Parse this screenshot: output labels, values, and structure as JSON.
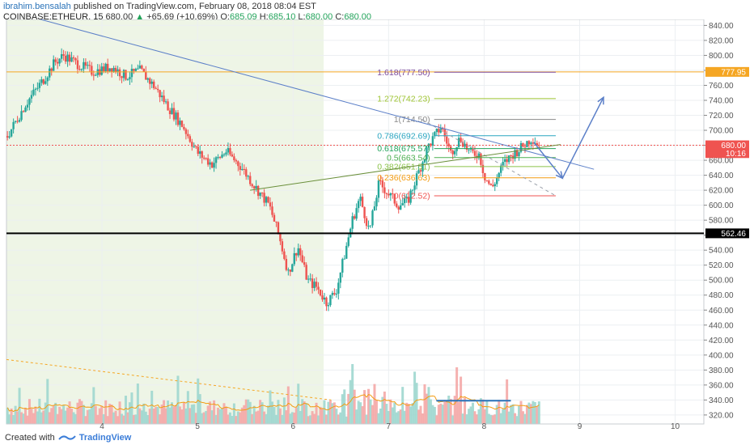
{
  "header": {
    "user": "ibrahim.bensalah",
    "published": "published on TradingView.com, February 08, 2018 08:04 EST",
    "symbol": "COINBASE:ETHEUR, 15",
    "last": "680.00",
    "change_arrow": "▲",
    "change": "+65.69 (+10.69%)",
    "o_label": "O:",
    "o": "685.09",
    "h_label": "H:",
    "h": "685.10",
    "l_label": "L:",
    "l": "680.00",
    "c_label": "C:",
    "c": "680.00"
  },
  "footer": {
    "created_with": "Created with",
    "brand": "TradingView"
  },
  "colors": {
    "up": "#26a69a",
    "down": "#ef5350",
    "session_bg": "#eef5e6",
    "trend": "#5b7fc8",
    "support": "#000000",
    "orange_line": "#f5a623",
    "volume_ma": "#f39c12"
  },
  "chart_data": {
    "type": "candlestick",
    "title": "COINBASE:ETHEUR, 15",
    "xlim": [
      3.0,
      10.3
    ],
    "ylim": [
      308,
      848
    ],
    "x_ticks": [
      "4",
      "5",
      "6",
      "7",
      "8",
      "9",
      "10"
    ],
    "y_ticks": [
      "840.00",
      "820.00",
      "800.00",
      "780.00",
      "760.00",
      "740.00",
      "720.00",
      "700.00",
      "680.00",
      "660.00",
      "640.00",
      "620.00",
      "600.00",
      "580.00",
      "560.00",
      "540.00",
      "520.00",
      "500.00",
      "480.00",
      "460.00",
      "440.00",
      "420.00",
      "400.00",
      "380.00",
      "360.00",
      "340.00",
      "320.00"
    ],
    "price_path": [
      [
        3.0,
        690
      ],
      [
        3.2,
        735
      ],
      [
        3.4,
        770
      ],
      [
        3.5,
        790
      ],
      [
        3.6,
        800
      ],
      [
        3.75,
        788
      ],
      [
        3.9,
        778
      ],
      [
        4.1,
        785
      ],
      [
        4.25,
        772
      ],
      [
        4.4,
        780
      ],
      [
        4.55,
        758
      ],
      [
        4.7,
        730
      ],
      [
        4.85,
        705
      ],
      [
        5.0,
        670
      ],
      [
        5.15,
        655
      ],
      [
        5.3,
        672
      ],
      [
        5.45,
        652
      ],
      [
        5.6,
        625
      ],
      [
        5.75,
        600
      ],
      [
        5.85,
        560
      ],
      [
        5.95,
        510
      ],
      [
        6.05,
        545
      ],
      [
        6.15,
        500
      ],
      [
        6.25,
        490
      ],
      [
        6.35,
        470
      ],
      [
        6.45,
        485
      ],
      [
        6.55,
        540
      ],
      [
        6.62,
        580
      ],
      [
        6.7,
        610
      ],
      [
        6.8,
        565
      ],
      [
        6.9,
        630
      ],
      [
        7.0,
        615
      ],
      [
        7.1,
        600
      ],
      [
        7.2,
        605
      ],
      [
        7.3,
        640
      ],
      [
        7.42,
        680
      ],
      [
        7.55,
        705
      ],
      [
        7.65,
        670
      ],
      [
        7.75,
        690
      ],
      [
        7.85,
        670
      ],
      [
        7.95,
        668
      ],
      [
        8.0,
        640
      ],
      [
        8.08,
        622
      ],
      [
        8.2,
        655
      ],
      [
        8.3,
        668
      ],
      [
        8.4,
        678
      ],
      [
        8.5,
        690
      ],
      [
        8.58,
        680
      ]
    ],
    "horizontal_levels": [
      {
        "label": "777.95",
        "price": 777.95,
        "color": "#f5a623"
      },
      {
        "label": "680.00",
        "price": 680.0,
        "color": "#ef5350"
      },
      {
        "label": "562.46",
        "price": 562.46,
        "color": "#000000"
      }
    ],
    "price_labels": [
      {
        "label": "777.95",
        "price": 777.95,
        "bg": "#f5a623"
      },
      {
        "label": "680.00",
        "price": 680.0,
        "bg": "#ef5350"
      },
      {
        "label": "10:16",
        "price": 669.5,
        "bg": "#ef5350"
      },
      {
        "label": "562.46",
        "price": 562.46,
        "bg": "#000000"
      }
    ],
    "fibonacci": {
      "x_start": 7.35,
      "x_end": 8.75,
      "levels": [
        {
          "label": "1.618(777.50)",
          "price": 777.5,
          "color": "#7b4a9b"
        },
        {
          "label": "1.272(742.23)",
          "price": 742.23,
          "color": "#9ec431"
        },
        {
          "label": "1(714.50)",
          "price": 714.5,
          "color": "#8a8a8a"
        },
        {
          "label": "0.786(692.69)",
          "price": 692.69,
          "color": "#2aa5c0"
        },
        {
          "label": "0.618(675.57)",
          "price": 675.57,
          "color": "#22a35a"
        },
        {
          "label": "0.5(663.54)",
          "price": 663.54,
          "color": "#4caf50"
        },
        {
          "label": "0.382(651.51)",
          "price": 651.51,
          "color": "#8bc34a"
        },
        {
          "label": "0.236(636.63)",
          "price": 636.63,
          "color": "#f39c12"
        },
        {
          "label": "0(612.52)",
          "price": 612.52,
          "color": "#ef5350"
        }
      ]
    },
    "trend_lines": [
      {
        "from": [
          3.3,
          850
        ],
        "to": [
          9.15,
          648
        ],
        "color": "#5b7fc8"
      },
      {
        "from": [
          5.55,
          620
        ],
        "to": [
          8.8,
          681
        ],
        "color": "#6a8f3a"
      }
    ],
    "projection_arrows": [
      {
        "from": [
          8.52,
          684
        ],
        "to": [
          8.82,
          636
        ],
        "color": "#5b7fc8"
      },
      {
        "from": [
          8.82,
          636
        ],
        "to": [
          9.25,
          744
        ],
        "color": "#5b7fc8"
      }
    ],
    "highlight_segment": {
      "from": [
        7.5,
        339
      ],
      "to": [
        8.28,
        339
      ],
      "color": "#2a73b9"
    },
    "volume_trend": {
      "from": [
        3.0,
        394
      ],
      "to": [
        6.4,
        340
      ],
      "color": "#f5a623"
    },
    "session_shade": {
      "x_from": 3.0,
      "x_to": 6.32
    }
  }
}
